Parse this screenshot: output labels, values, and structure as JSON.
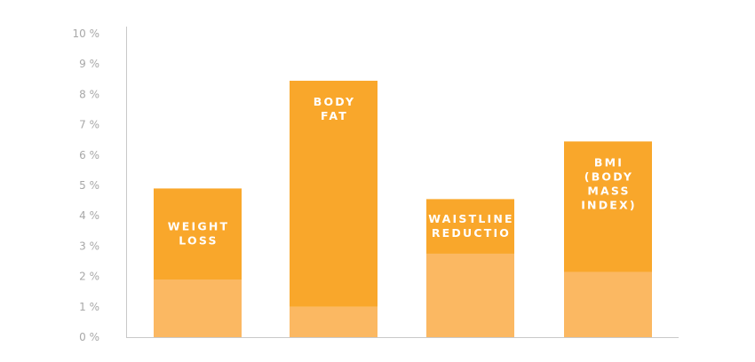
{
  "chart_data": {
    "type": "bar",
    "stacked": true,
    "categories": [
      "WEIGHT LOSS",
      "BODY FAT",
      "WAISTLINE REDUCTIO",
      "BMI (BODY MASS INDEX)"
    ],
    "category_label_lines": [
      [
        "WEIGHT",
        "LOSS"
      ],
      [
        "BODY",
        "FAT"
      ],
      [
        "WAISTLINE",
        "REDUCTIO"
      ],
      [
        "BMI",
        "(BODY",
        "MASS",
        "INDEX)"
      ]
    ],
    "series": [
      {
        "values": [
          1.9,
          1.0,
          2.75,
          2.15
        ],
        "color": "#fbb862"
      },
      {
        "values": [
          3.0,
          7.45,
          1.8,
          4.3
        ],
        "color": "#f9a72b"
      }
    ],
    "y_ticks": [
      "0 %",
      "1 %",
      "2 %",
      "3 %",
      "4 %",
      "5 %",
      "6 %",
      "7 %",
      "8 %",
      "9 %",
      "10 %"
    ],
    "ylim": [
      0,
      10
    ],
    "y_unit": "%",
    "title": "",
    "xlabel": "",
    "ylabel": "",
    "grid": false,
    "legend": "none",
    "axis_color": "#c9c9c9",
    "tick_label_color": "#a8a8a8"
  }
}
